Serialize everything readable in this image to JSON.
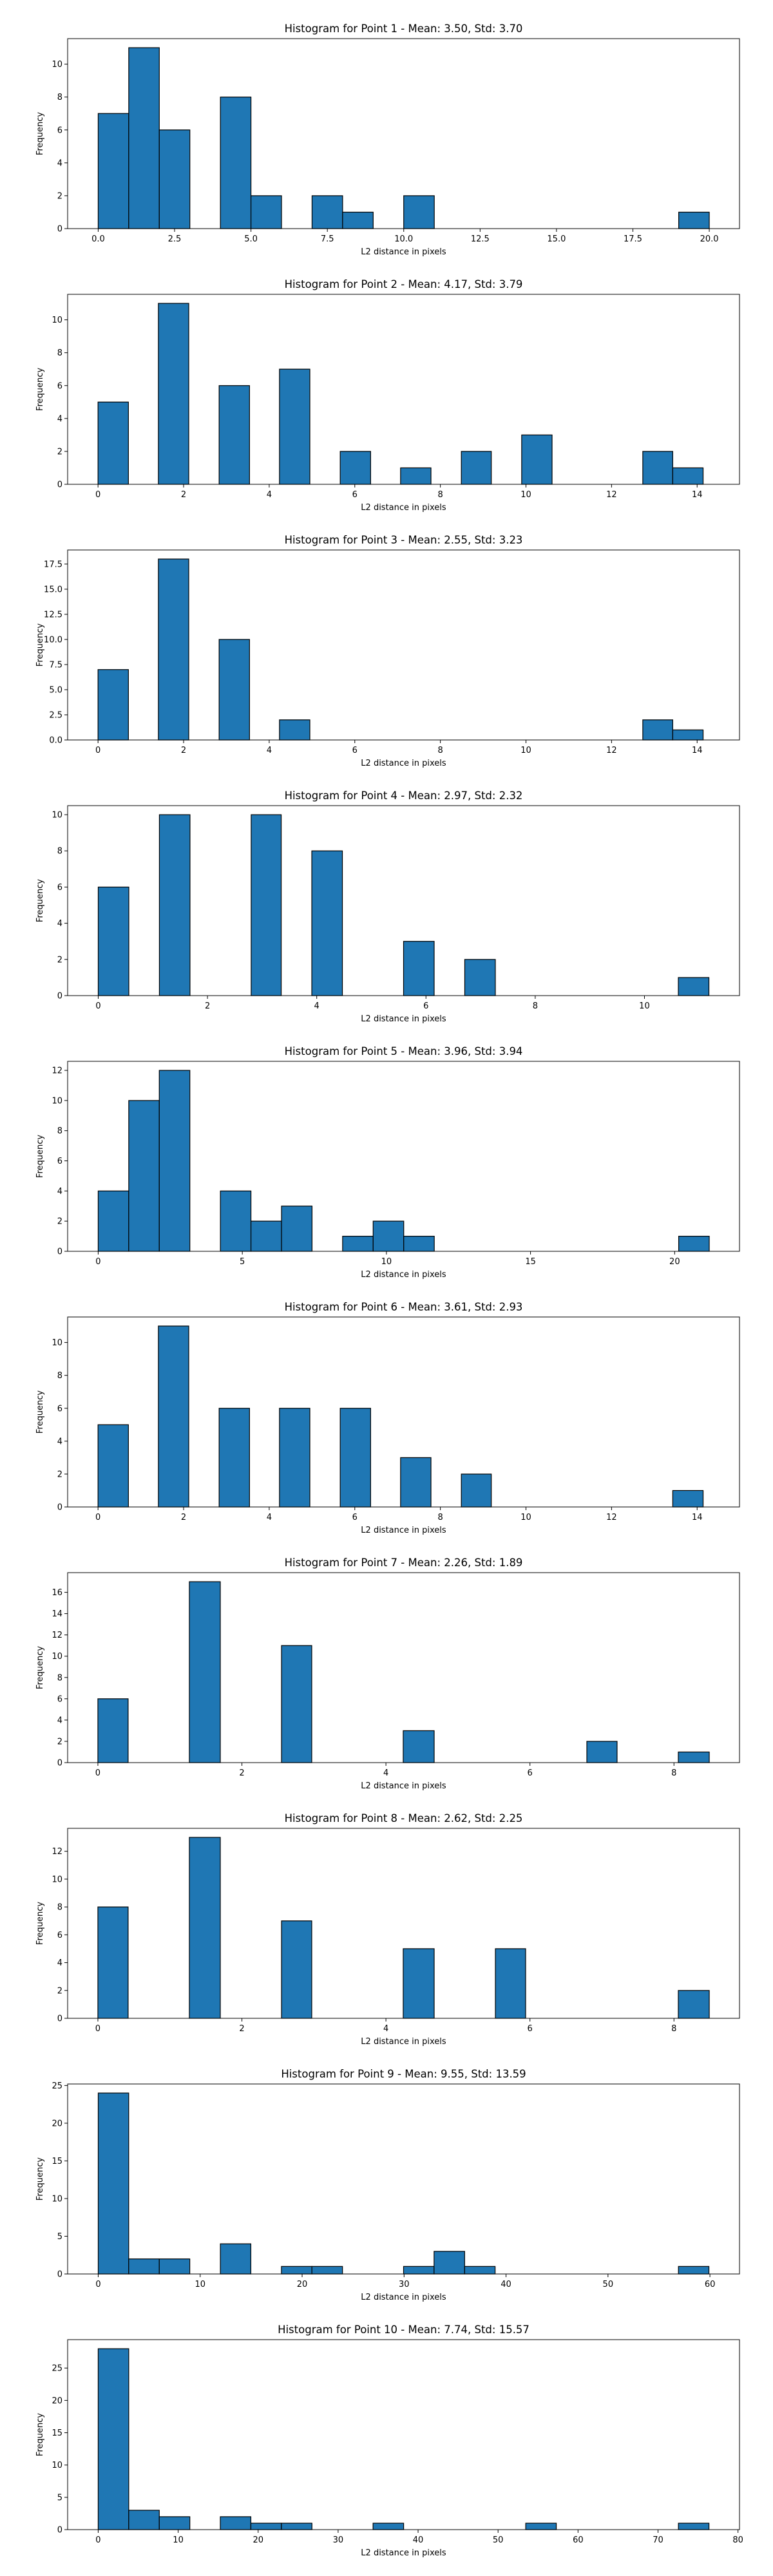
{
  "figure": {
    "colors": {
      "bar_fill": "#1f77b4",
      "bar_edge": "#000000",
      "axes": "#000000",
      "background": "#ffffff"
    }
  },
  "chart_data": [
    {
      "type": "bar",
      "title": "Histogram for Point 1 - Mean: 3.50, Std: 3.70",
      "xlabel": "L2 distance in pixels",
      "ylabel": "Frequency",
      "xlim": [
        -1.0,
        20.99
      ],
      "ylim": [
        0,
        11.55
      ],
      "xticks": [
        0.0,
        2.5,
        5.0,
        7.5,
        10.0,
        12.5,
        15.0,
        17.5,
        20.0
      ],
      "xtick_labels": [
        "0.0",
        "2.5",
        "5.0",
        "7.5",
        "10.0",
        "12.5",
        "15.0",
        "17.5",
        "20.0"
      ],
      "yticks": [
        0,
        2,
        4,
        6,
        8,
        10
      ],
      "ytick_labels": [
        "0",
        "2",
        "4",
        "6",
        "8",
        "10"
      ],
      "grid": false,
      "bins": [
        {
          "x0": 0.0,
          "x1": 1.0,
          "count": 7
        },
        {
          "x0": 1.0,
          "x1": 2.0,
          "count": 11
        },
        {
          "x0": 2.0,
          "x1": 3.0,
          "count": 6
        },
        {
          "x0": 4.0,
          "x1": 5.0,
          "count": 8
        },
        {
          "x0": 5.0,
          "x1": 6.0,
          "count": 2
        },
        {
          "x0": 7.0,
          "x1": 8.0,
          "count": 2
        },
        {
          "x0": 8.0,
          "x1": 9.0,
          "count": 1
        },
        {
          "x0": 10.0,
          "x1": 11.0,
          "count": 2
        },
        {
          "x0": 19.0,
          "x1": 20.0,
          "count": 1
        }
      ]
    },
    {
      "type": "bar",
      "title": "Histogram for Point 2 - Mean: 4.17, Std: 3.79",
      "xlabel": "L2 distance in pixels",
      "ylabel": "Frequency",
      "xlim": [
        -0.71,
        14.99
      ],
      "ylim": [
        0,
        11.55
      ],
      "xticks": [
        0,
        2,
        4,
        6,
        8,
        10,
        12,
        14
      ],
      "xtick_labels": [
        "0",
        "2",
        "4",
        "6",
        "8",
        "10",
        "12",
        "14"
      ],
      "yticks": [
        0,
        2,
        4,
        6,
        8,
        10
      ],
      "ytick_labels": [
        "0",
        "2",
        "4",
        "6",
        "8",
        "10"
      ],
      "grid": false,
      "bins": [
        {
          "x0": 0.0,
          "x1": 0.71,
          "count": 5
        },
        {
          "x0": 1.41,
          "x1": 2.12,
          "count": 11
        },
        {
          "x0": 2.83,
          "x1": 3.54,
          "count": 6
        },
        {
          "x0": 4.24,
          "x1": 4.95,
          "count": 7
        },
        {
          "x0": 5.66,
          "x1": 6.37,
          "count": 2
        },
        {
          "x0": 7.07,
          "x1": 7.78,
          "count": 1
        },
        {
          "x0": 8.49,
          "x1": 9.19,
          "count": 2
        },
        {
          "x0": 9.9,
          "x1": 10.61,
          "count": 3
        },
        {
          "x0": 12.73,
          "x1": 13.43,
          "count": 2
        },
        {
          "x0": 13.43,
          "x1": 14.14,
          "count": 1
        }
      ]
    },
    {
      "type": "bar",
      "title": "Histogram for Point 3 - Mean: 2.55, Std: 3.23",
      "xlabel": "L2 distance in pixels",
      "ylabel": "Frequency",
      "xlim": [
        -0.71,
        14.99
      ],
      "ylim": [
        0,
        18.9
      ],
      "xticks": [
        0,
        2,
        4,
        6,
        8,
        10,
        12,
        14
      ],
      "xtick_labels": [
        "0",
        "2",
        "4",
        "6",
        "8",
        "10",
        "12",
        "14"
      ],
      "yticks": [
        0.0,
        2.5,
        5.0,
        7.5,
        10.0,
        12.5,
        15.0,
        17.5
      ],
      "ytick_labels": [
        "0.0",
        "2.5",
        "5.0",
        "7.5",
        "10.0",
        "12.5",
        "15.0",
        "17.5"
      ],
      "grid": false,
      "bins": [
        {
          "x0": 0.0,
          "x1": 0.71,
          "count": 7
        },
        {
          "x0": 1.41,
          "x1": 2.12,
          "count": 18
        },
        {
          "x0": 2.83,
          "x1": 3.54,
          "count": 10
        },
        {
          "x0": 4.24,
          "x1": 4.95,
          "count": 2
        },
        {
          "x0": 12.73,
          "x1": 13.43,
          "count": 2
        },
        {
          "x0": 13.43,
          "x1": 14.14,
          "count": 1
        }
      ]
    },
    {
      "type": "bar",
      "title": "Histogram for Point 4 - Mean: 2.97, Std: 2.32",
      "xlabel": "L2 distance in pixels",
      "ylabel": "Frequency",
      "xlim": [
        -0.56,
        11.74
      ],
      "ylim": [
        0,
        10.5
      ],
      "xticks": [
        0,
        2,
        4,
        6,
        8,
        10
      ],
      "xtick_labels": [
        "0",
        "2",
        "4",
        "6",
        "8",
        "10"
      ],
      "yticks": [
        0,
        2,
        4,
        6,
        8,
        10
      ],
      "ytick_labels": [
        "0",
        "2",
        "4",
        "6",
        "8",
        "10"
      ],
      "grid": false,
      "bins": [
        {
          "x0": 0.0,
          "x1": 0.56,
          "count": 6
        },
        {
          "x0": 1.12,
          "x1": 1.68,
          "count": 10
        },
        {
          "x0": 2.8,
          "x1": 3.35,
          "count": 10
        },
        {
          "x0": 3.91,
          "x1": 4.47,
          "count": 8
        },
        {
          "x0": 5.59,
          "x1": 6.15,
          "count": 3
        },
        {
          "x0": 6.71,
          "x1": 7.27,
          "count": 2
        },
        {
          "x0": 10.62,
          "x1": 11.18,
          "count": 1
        }
      ]
    },
    {
      "type": "bar",
      "title": "Histogram for Point 5 - Mean: 3.96, Std: 3.94",
      "xlabel": "L2 distance in pixels",
      "ylabel": "Frequency",
      "xlim": [
        -1.06,
        22.25
      ],
      "ylim": [
        0,
        12.6
      ],
      "xticks": [
        0,
        5,
        10,
        15,
        20
      ],
      "xtick_labels": [
        "0",
        "5",
        "10",
        "15",
        "20"
      ],
      "yticks": [
        0,
        2,
        4,
        6,
        8,
        10,
        12
      ],
      "ytick_labels": [
        "0",
        "2",
        "4",
        "6",
        "8",
        "10",
        "12"
      ],
      "grid": false,
      "bins": [
        {
          "x0": 0.0,
          "x1": 1.06,
          "count": 4
        },
        {
          "x0": 1.06,
          "x1": 2.12,
          "count": 10
        },
        {
          "x0": 2.12,
          "x1": 3.18,
          "count": 12
        },
        {
          "x0": 4.24,
          "x1": 5.3,
          "count": 4
        },
        {
          "x0": 5.3,
          "x1": 6.36,
          "count": 2
        },
        {
          "x0": 6.36,
          "x1": 7.42,
          "count": 3
        },
        {
          "x0": 8.48,
          "x1": 9.54,
          "count": 1
        },
        {
          "x0": 9.54,
          "x1": 10.6,
          "count": 2
        },
        {
          "x0": 10.6,
          "x1": 11.66,
          "count": 1
        },
        {
          "x0": 20.14,
          "x1": 21.2,
          "count": 1
        }
      ]
    },
    {
      "type": "bar",
      "title": "Histogram for Point 6 - Mean: 3.61, Std: 2.93",
      "xlabel": "L2 distance in pixels",
      "ylabel": "Frequency",
      "xlim": [
        -0.71,
        14.99
      ],
      "ylim": [
        0,
        11.55
      ],
      "xticks": [
        0,
        2,
        4,
        6,
        8,
        10,
        12,
        14
      ],
      "xtick_labels": [
        "0",
        "2",
        "4",
        "6",
        "8",
        "10",
        "12",
        "14"
      ],
      "yticks": [
        0,
        2,
        4,
        6,
        8,
        10
      ],
      "ytick_labels": [
        "0",
        "2",
        "4",
        "6",
        "8",
        "10"
      ],
      "grid": false,
      "bins": [
        {
          "x0": 0.0,
          "x1": 0.71,
          "count": 5
        },
        {
          "x0": 1.41,
          "x1": 2.12,
          "count": 11
        },
        {
          "x0": 2.83,
          "x1": 3.54,
          "count": 6
        },
        {
          "x0": 4.24,
          "x1": 4.95,
          "count": 6
        },
        {
          "x0": 5.66,
          "x1": 6.37,
          "count": 6
        },
        {
          "x0": 7.07,
          "x1": 7.78,
          "count": 3
        },
        {
          "x0": 8.49,
          "x1": 9.19,
          "count": 2
        },
        {
          "x0": 13.43,
          "x1": 14.14,
          "count": 1
        }
      ]
    },
    {
      "type": "bar",
      "title": "Histogram for Point 7 - Mean: 2.26, Std: 1.89",
      "xlabel": "L2 distance in pixels",
      "ylabel": "Frequency",
      "xlim": [
        -0.42,
        8.91
      ],
      "ylim": [
        0,
        17.85
      ],
      "xticks": [
        0,
        2,
        4,
        6,
        8
      ],
      "xtick_labels": [
        "0",
        "2",
        "4",
        "6",
        "8"
      ],
      "yticks": [
        0,
        2,
        4,
        6,
        8,
        10,
        12,
        14,
        16
      ],
      "ytick_labels": [
        "0",
        "2",
        "4",
        "6",
        "8",
        "10",
        "12",
        "14",
        "16"
      ],
      "grid": false,
      "bins": [
        {
          "x0": 0.0,
          "x1": 0.42,
          "count": 6
        },
        {
          "x0": 1.27,
          "x1": 1.7,
          "count": 17
        },
        {
          "x0": 2.55,
          "x1": 2.97,
          "count": 11
        },
        {
          "x0": 4.24,
          "x1": 4.67,
          "count": 3
        },
        {
          "x0": 6.79,
          "x1": 7.21,
          "count": 2
        },
        {
          "x0": 8.06,
          "x1": 8.49,
          "count": 1
        }
      ]
    },
    {
      "type": "bar",
      "title": "Histogram for Point 8 - Mean: 2.62, Std: 2.25",
      "xlabel": "L2 distance in pixels",
      "ylabel": "Frequency",
      "xlim": [
        -0.42,
        8.91
      ],
      "ylim": [
        0,
        13.65
      ],
      "xticks": [
        0,
        2,
        4,
        6,
        8
      ],
      "xtick_labels": [
        "0",
        "2",
        "4",
        "6",
        "8"
      ],
      "yticks": [
        0,
        2,
        4,
        6,
        8,
        10,
        12
      ],
      "ytick_labels": [
        "0",
        "2",
        "4",
        "6",
        "8",
        "10",
        "12"
      ],
      "grid": false,
      "bins": [
        {
          "x0": 0.0,
          "x1": 0.42,
          "count": 8
        },
        {
          "x0": 1.27,
          "x1": 1.7,
          "count": 13
        },
        {
          "x0": 2.55,
          "x1": 2.97,
          "count": 7
        },
        {
          "x0": 4.24,
          "x1": 4.67,
          "count": 5
        },
        {
          "x0": 5.52,
          "x1": 5.94,
          "count": 5
        },
        {
          "x0": 8.06,
          "x1": 8.49,
          "count": 2
        }
      ]
    },
    {
      "type": "bar",
      "title": "Histogram for Point 9 - Mean: 9.55, Std: 13.59",
      "xlabel": "L2 distance in pixels",
      "ylabel": "Frequency",
      "xlim": [
        -3.0,
        62.9
      ],
      "ylim": [
        0,
        25.2
      ],
      "xticks": [
        0,
        10,
        20,
        30,
        40,
        50,
        60
      ],
      "xtick_labels": [
        "0",
        "10",
        "20",
        "30",
        "40",
        "50",
        "60"
      ],
      "yticks": [
        0,
        5,
        10,
        15,
        20,
        25
      ],
      "ytick_labels": [
        "0",
        "5",
        "10",
        "15",
        "20",
        "25"
      ],
      "grid": false,
      "bins": [
        {
          "x0": 0.0,
          "x1": 2.99,
          "count": 24
        },
        {
          "x0": 2.99,
          "x1": 5.99,
          "count": 2
        },
        {
          "x0": 5.99,
          "x1": 8.98,
          "count": 2
        },
        {
          "x0": 11.98,
          "x1": 14.97,
          "count": 4
        },
        {
          "x0": 17.97,
          "x1": 20.96,
          "count": 1
        },
        {
          "x0": 20.96,
          "x1": 23.96,
          "count": 1
        },
        {
          "x0": 29.95,
          "x1": 32.94,
          "count": 1
        },
        {
          "x0": 32.94,
          "x1": 35.94,
          "count": 3
        },
        {
          "x0": 35.94,
          "x1": 38.93,
          "count": 1
        },
        {
          "x0": 56.91,
          "x1": 59.9,
          "count": 1
        }
      ]
    },
    {
      "type": "bar",
      "title": "Histogram for Point 10 - Mean: 7.74, Std: 15.57",
      "xlabel": "L2 distance in pixels",
      "ylabel": "Frequency",
      "xlim": [
        -3.82,
        80.19
      ],
      "ylim": [
        0,
        29.4
      ],
      "xticks": [
        0,
        10,
        20,
        30,
        40,
        50,
        60,
        70,
        80
      ],
      "xtick_labels": [
        "0",
        "10",
        "20",
        "30",
        "40",
        "50",
        "60",
        "70",
        "80"
      ],
      "yticks": [
        0,
        5,
        10,
        15,
        20,
        25
      ],
      "ytick_labels": [
        "0",
        "5",
        "10",
        "15",
        "20",
        "25"
      ],
      "grid": false,
      "bins": [
        {
          "x0": 0.0,
          "x1": 3.82,
          "count": 28
        },
        {
          "x0": 3.82,
          "x1": 7.64,
          "count": 3
        },
        {
          "x0": 7.64,
          "x1": 11.46,
          "count": 2
        },
        {
          "x0": 15.27,
          "x1": 19.09,
          "count": 2
        },
        {
          "x0": 19.09,
          "x1": 22.91,
          "count": 1
        },
        {
          "x0": 22.91,
          "x1": 26.73,
          "count": 1
        },
        {
          "x0": 34.37,
          "x1": 38.19,
          "count": 1
        },
        {
          "x0": 53.46,
          "x1": 57.28,
          "count": 1
        },
        {
          "x0": 72.55,
          "x1": 76.37,
          "count": 1
        }
      ]
    }
  ]
}
